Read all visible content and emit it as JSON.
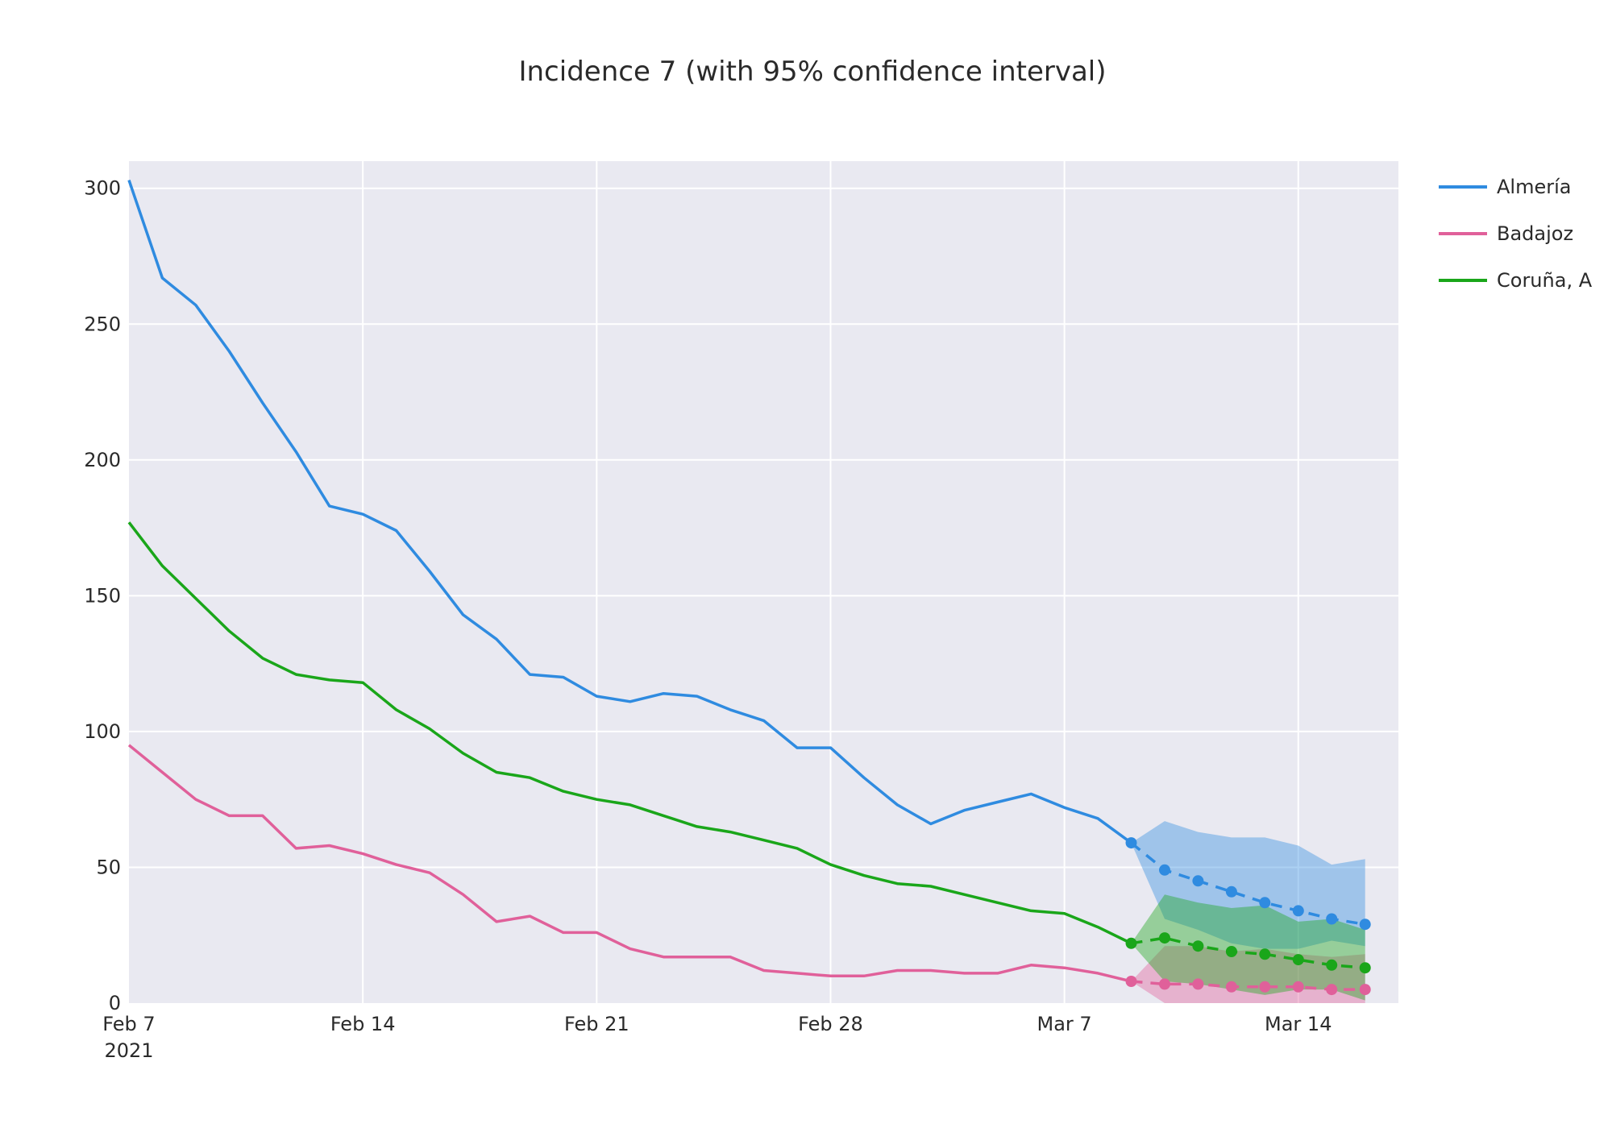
{
  "chart_data": {
    "type": "line",
    "title": "Incidence 7 (with 95% confidence interval)",
    "xlabel": "",
    "ylabel": "",
    "ylim": [
      0,
      310
    ],
    "yticks": [
      0,
      50,
      100,
      150,
      200,
      250,
      300
    ],
    "x_range_days": [
      0,
      38
    ],
    "x_ticks": [
      {
        "day": 0,
        "label": "Feb 7",
        "sub": "2021"
      },
      {
        "day": 7,
        "label": "Feb 14",
        "sub": ""
      },
      {
        "day": 14,
        "label": "Feb 21",
        "sub": ""
      },
      {
        "day": 21,
        "label": "Feb 28",
        "sub": ""
      },
      {
        "day": 28,
        "label": "Mar 7",
        "sub": ""
      },
      {
        "day": 35,
        "label": "Mar 14",
        "sub": ""
      }
    ],
    "series": [
      {
        "name": "Almería",
        "color": "#2f8be0",
        "band_color": "rgba(47,139,224,0.40)",
        "start_day": 0,
        "values": [
          303,
          267,
          257,
          240,
          221,
          203,
          183,
          180,
          174,
          159,
          143,
          134,
          121,
          120,
          113,
          111,
          114,
          113,
          108,
          104,
          94,
          94,
          83,
          73,
          66,
          71,
          74,
          77,
          72,
          68,
          59
        ],
        "forecast_start_day": 30,
        "forecast": [
          59,
          49,
          45,
          41,
          37,
          34,
          31,
          29
        ],
        "ci_upper": [
          59,
          67,
          63,
          61,
          61,
          58,
          51,
          53
        ],
        "ci_lower": [
          59,
          31,
          27,
          22,
          20,
          20,
          23,
          21
        ]
      },
      {
        "name": "Badajoz",
        "color": "#e0609a",
        "band_color": "rgba(224,96,154,0.40)",
        "start_day": 0,
        "values": [
          95,
          85,
          75,
          69,
          69,
          57,
          58,
          55,
          51,
          48,
          40,
          30,
          32,
          26,
          26,
          20,
          17,
          17,
          17,
          12,
          11,
          10,
          10,
          12,
          12,
          11,
          11,
          14,
          13,
          11,
          8
        ],
        "forecast_start_day": 30,
        "forecast": [
          8,
          7,
          7,
          6,
          6,
          6,
          5,
          5
        ],
        "ci_upper": [
          8,
          21,
          21,
          19,
          20,
          18,
          17,
          18
        ],
        "ci_lower": [
          8,
          0,
          0,
          0,
          0,
          0,
          0,
          0
        ]
      },
      {
        "name": "Coruña, A",
        "color": "#1aa61a",
        "band_color": "rgba(26,166,26,0.40)",
        "start_day": 0,
        "values": [
          177,
          161,
          149,
          137,
          127,
          121,
          119,
          118,
          108,
          101,
          92,
          85,
          83,
          78,
          75,
          73,
          69,
          65,
          63,
          60,
          57,
          51,
          47,
          44,
          43,
          40,
          37,
          34,
          33,
          28,
          22
        ],
        "forecast_start_day": 30,
        "forecast": [
          22,
          24,
          21,
          19,
          18,
          16,
          14,
          13
        ],
        "ci_upper": [
          22,
          40,
          37,
          35,
          36,
          30,
          31,
          27
        ],
        "ci_lower": [
          22,
          8,
          7,
          5,
          3,
          5,
          5,
          1
        ]
      }
    ],
    "legend_position": "right"
  }
}
